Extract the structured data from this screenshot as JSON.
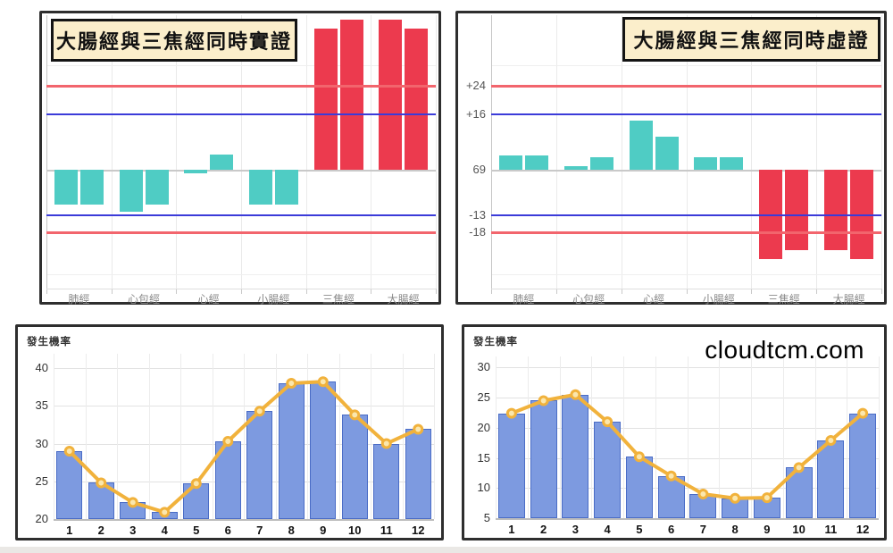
{
  "chart_data": [
    {
      "id": "excess-syndrome",
      "type": "bar",
      "title": "大腸經與三焦經同時實證",
      "categories": [
        "肺經",
        "心包經",
        "心經",
        "小腸經",
        "三焦經",
        "大腸經"
      ],
      "series": [
        {
          "name": "bar1",
          "values": [
            -10,
            -12,
            -1,
            -10,
            40.5,
            43
          ]
        },
        {
          "name": "bar2",
          "values": [
            -10,
            -10,
            4.5,
            -10,
            43,
            40.5
          ]
        }
      ],
      "bar_colors": [
        "#4fccc4",
        "#4fccc4",
        "#4fccc4",
        "#4fccc4",
        "#ec3a4e",
        "#ec3a4e"
      ],
      "ref_lines": [
        {
          "value": 24,
          "color": "#f2656d"
        },
        {
          "value": 16,
          "color": "#3b3bd9"
        },
        {
          "value": -13,
          "color": "#3b3bd9"
        },
        {
          "value": -18,
          "color": "#f2656d"
        }
      ],
      "baseline_value": 0,
      "minor_gridlines": [
        30,
        -30
      ],
      "y_labels": [],
      "ylim": [
        -34,
        44.3
      ],
      "legend": "none"
    },
    {
      "id": "deficiency-syndrome",
      "type": "bar",
      "title": "大腸經與三焦經同時虛證",
      "categories": [
        "肺經",
        "心包經",
        "心經",
        "小腸經",
        "三焦經",
        "大腸經"
      ],
      "series": [
        {
          "name": "bar1",
          "values": [
            4,
            1,
            14,
            3.5,
            -25.5,
            -23
          ]
        },
        {
          "name": "bar2",
          "values": [
            4,
            3.5,
            9.5,
            3.5,
            -23,
            -25.5
          ]
        }
      ],
      "bar_colors": [
        "#4fccc4",
        "#4fccc4",
        "#4fccc4",
        "#4fccc4",
        "#ec3a4e",
        "#ec3a4e"
      ],
      "ref_lines": [
        {
          "value": 24,
          "color": "#f2656d"
        },
        {
          "value": 16,
          "color": "#3b3bd9"
        },
        {
          "value": -13,
          "color": "#3b3bd9"
        },
        {
          "value": -18,
          "color": "#f2656d"
        }
      ],
      "baseline_value": 0,
      "minor_gridlines": [
        30,
        -30
      ],
      "y_labels": [
        {
          "text": "+24",
          "value": 24
        },
        {
          "text": "+16",
          "value": 16
        },
        {
          "text": "69",
          "value": 0
        },
        {
          "text": "-13",
          "value": -13
        },
        {
          "text": "-18",
          "value": -18
        }
      ],
      "ylim": [
        -34,
        44.3
      ],
      "legend": "none"
    },
    {
      "id": "probability-by-month-excess",
      "type": "bar+line",
      "ylabel": "發生機率",
      "categories": [
        "1",
        "2",
        "3",
        "4",
        "5",
        "6",
        "7",
        "8",
        "9",
        "10",
        "11",
        "12"
      ],
      "values": [
        29,
        24.8,
        22.2,
        20.9,
        24.7,
        30.3,
        34.3,
        38,
        38.2,
        33.8,
        30,
        31.9
      ],
      "yticks": [
        20,
        25,
        30,
        35,
        40
      ],
      "ylim": [
        20,
        41.9
      ],
      "bar_color": "#7d9ae0",
      "bar_border_color": "#4a6cc6",
      "line_color": "#f1b23c",
      "dot_fill": "#fbe7ad",
      "grid": "on",
      "legend": "none"
    },
    {
      "id": "probability-by-month-deficiency",
      "type": "bar+line",
      "ylabel": "發生機率",
      "watermark": "cloudtcm.com",
      "categories": [
        "1",
        "2",
        "3",
        "4",
        "5",
        "6",
        "7",
        "8",
        "9",
        "10",
        "11",
        "12"
      ],
      "values": [
        22.4,
        24.5,
        25.5,
        21,
        15.2,
        12,
        9,
        8.3,
        8.4,
        13.4,
        17.9,
        22.4
      ],
      "yticks": [
        5,
        10,
        15,
        20,
        25,
        30
      ],
      "ylim": [
        5,
        31.84
      ],
      "bar_color": "#7d9ae0",
      "bar_border_color": "#4a6cc6",
      "line_color": "#f1b23c",
      "dot_fill": "#fbe7ad",
      "grid": "on",
      "legend": "none"
    }
  ],
  "style_colors": {
    "teal_bar": "#4fccc4",
    "red_bar": "#ec3a4e",
    "ref_red_line": "#f2656d",
    "ref_blue_line": "#3b3bd9",
    "baseline_gray": "#c9c9c9",
    "title_box_bg": "#fbeecb",
    "panel_border": "#2e2e2e"
  }
}
